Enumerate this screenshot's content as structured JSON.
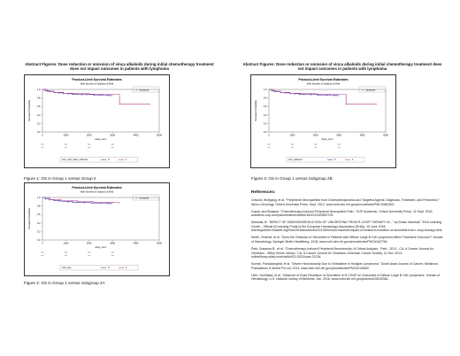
{
  "left_panel": {
    "title": "Abstract Figures: Dose reduction or omission of vinca alkaloids during initial chemotherapy treatment does not impact outcomes in patients with lymphoma",
    "figures": [
      {
        "caption": "Figure 1: OS in Group 1 versus Group 2",
        "plot_title": "Product-Limit Survival Estimates",
        "plot_subtitle": "With Number of Subjects at Risk",
        "legend_marker_label": "Censored",
        "strata_label": "vinc_omit_dose_reduced",
        "strata_levels": [
          "0",
          "1"
        ]
      },
      {
        "caption": "Figure 2: OS in Group 1 versus Subgroup 2A",
        "plot_title": "Product-Limit Survival Estimates",
        "plot_subtitle": "With Number of Subjects at Risk",
        "legend_marker_label": "Censored",
        "strata_label": "omit_any",
        "strata_levels": [
          "0",
          "1"
        ]
      }
    ]
  },
  "right_panel": {
    "title": "Abstract Figures: Dose reduction or omission of vinca alkaloids during initial chemotherapy treatment does not impact outcomes in patients with lymphoma",
    "figures": [
      {
        "caption": "Figure 3: OS in Group 1 versus Subgroup 2B",
        "plot_title": "Product-Limit Survival Estimates",
        "plot_subtitle": "With Number of Subjects at Risk",
        "legend_marker_label": "Censored",
        "strata_label": "vinc_reduced",
        "strata_levels": [
          "0",
          "1"
        ]
      }
    ],
    "references_title": "References:",
    "references": [
      "Griwold, Wolfgang, et al. \"Peripheral Neuropathies from Chemotherapeutics and Targeted Agents: Diagnosis, Treatment, and Prevention.\" Neuro-Oncology, Oxford University Press, Sept. 2012, www.ncbi.nlm.nih.gov/pmc/articles/PMC3480240/.",
      "Gupta, and Bhaskar. \"Chemotherapy-Induced Peripheral Neuropathic Pain.\" OUP Academic, Oxford University Press, 11 Sept. 2015, academic.oup.com/painmedicine/article/16/4/1193/2800725.",
      "Marshall, B. \"IMPACT OF OMISSION/REDUCTION OF VINCRISTINE FROM R-CHOP THERAPY IN...\" by Shoko Marshall.\" EHA Learning Center - Official (ELearning Portal of the European Hematology Association (EHA)), 15 June 2018, learningcenter.ehaweb.org/eha/2018/stockholm/214765/shoko.marshall.impact.of.omission.reduction.of.vincristine.from.r-chop.therapy.html.",
      "Mörth, Charlott, et al. \"Does the Omission of Vincristine in Patients with Diffuse Large B Cell Lymphoma Affect Treatment Outcome?\" Annals of Hematology, Springer Berlin Heidelberg, 2018, www.ncbi.nlm.nih.gov/pmc/articles/PMC6162736/.",
      "Park, Susanna B., et al. \"Chemotherapy-Induced Peripheral Neurotoxicity: A Critical Analysis - Park - 2013 - CA: A Cancer Journal for Clinicians - Wiley Online Library.\" CA: A Cancer Journal for Clinicians, American Cancer Society, 11 Nov. 2013, onlinelibrary.wiley.com/doi/full/10.3322/caac.21204.",
      "Suresh, Pandalanghat, et al. \"Severe Neurotoxicity Due to Vinblastine in Hodgkin Lymphoma.\" South Asian Journal of Cancer, Medknow Publications & Media Pvt Ltd, 2014, www.ncbi.nlm.nih.gov/pmc/articles/PMC4014655/.",
      "Ufen, Yoshitaka, et al. \"Influence of Dose Reduction of Vincristine in R-CHOP on Outcomes of Diffuse Large B Cell Lymphoma.\" Annals of Hematology, U.S. National Library of Medicine, Jan. 2016, www.ncbi.nlm.nih.gov/pubmed/26430364."
    ]
  },
  "chart_data": [
    {
      "type": "line",
      "title": "Product-Limit Survival Estimates",
      "subtitle": "With Number of Subjects at Risk",
      "xlabel": "days_surv",
      "ylabel": "Survival Probability",
      "xlim": [
        0,
        5000
      ],
      "ylim": [
        0,
        1.0
      ],
      "xticks": [
        0,
        1000,
        2000,
        3000,
        4000,
        5000
      ],
      "yticks": [
        0.0,
        0.2,
        0.4,
        0.6,
        0.8,
        1.0
      ],
      "legend": "top-right",
      "series": [
        {
          "name": "0",
          "color": "#3a3aa8",
          "x": [
            0,
            120,
            300,
            500,
            700,
            900,
            1100,
            1300,
            1500,
            1700,
            1900,
            2200,
            2500,
            2800,
            2950
          ],
          "y": [
            1.0,
            0.97,
            0.95,
            0.93,
            0.92,
            0.91,
            0.9,
            0.89,
            0.89,
            0.88,
            0.88,
            0.87,
            0.87,
            0.86,
            0.86
          ]
        },
        {
          "name": "1",
          "color": "#b23a8c",
          "x": [
            0,
            200,
            500,
            900,
            1400,
            2000,
            2600,
            3000,
            3300,
            4600
          ],
          "y": [
            1.0,
            0.96,
            0.93,
            0.91,
            0.9,
            0.89,
            0.88,
            0.88,
            0.66,
            0.66
          ]
        }
      ],
      "at_risk_rows": 2
    },
    {
      "type": "line",
      "title": "Product-Limit Survival Estimates",
      "subtitle": "With Number of Subjects at Risk",
      "xlabel": "days_surv",
      "ylabel": "Survival Probability",
      "xlim": [
        0,
        5000
      ],
      "ylim": [
        0,
        1.0
      ],
      "xticks": [
        0,
        1000,
        2000,
        3000,
        4000,
        5000
      ],
      "yticks": [
        0.0,
        0.2,
        0.4,
        0.6,
        0.8,
        1.0
      ],
      "legend": "top-right",
      "series": [
        {
          "name": "0",
          "color": "#3a3aa8",
          "x": [
            0,
            120,
            300,
            500,
            700,
            900,
            1100,
            1300,
            1500,
            1800,
            2100,
            2500,
            2800,
            2950
          ],
          "y": [
            1.0,
            0.97,
            0.95,
            0.93,
            0.92,
            0.91,
            0.9,
            0.89,
            0.89,
            0.88,
            0.87,
            0.87,
            0.86,
            0.86
          ]
        },
        {
          "name": "1",
          "color": "#b23a8c",
          "x": [
            0,
            300,
            800,
            1500,
            2200,
            3000,
            3300
          ],
          "y": [
            1.0,
            0.95,
            0.92,
            0.9,
            0.89,
            0.88,
            0.88
          ]
        }
      ],
      "at_risk_rows": 2
    },
    {
      "type": "line",
      "title": "Product-Limit Survival Estimates",
      "subtitle": "With Number of Subjects at Risk",
      "xlabel": "days_surv",
      "ylabel": "Survival Probability",
      "xlim": [
        0,
        5000
      ],
      "ylim": [
        0,
        1.0
      ],
      "xticks": [
        0,
        1000,
        2000,
        3000,
        4000,
        5000
      ],
      "yticks": [
        0.0,
        0.2,
        0.4,
        0.6,
        0.8,
        1.0
      ],
      "legend": "top-right",
      "series": [
        {
          "name": "0",
          "color": "#3a3aa8",
          "x": [
            0,
            120,
            300,
            500,
            700,
            900,
            1100,
            1300,
            1500,
            1800,
            2100,
            2500,
            2800,
            2950
          ],
          "y": [
            1.0,
            0.97,
            0.95,
            0.93,
            0.92,
            0.91,
            0.9,
            0.89,
            0.89,
            0.88,
            0.87,
            0.87,
            0.86,
            0.86
          ]
        },
        {
          "name": "1",
          "color": "#b23a8c",
          "x": [
            0,
            200,
            500,
            900,
            1400,
            2000,
            2600,
            3000,
            3300,
            4600
          ],
          "y": [
            1.0,
            0.96,
            0.93,
            0.91,
            0.9,
            0.89,
            0.88,
            0.88,
            0.66,
            0.66
          ]
        }
      ],
      "at_risk_rows": 2
    }
  ]
}
